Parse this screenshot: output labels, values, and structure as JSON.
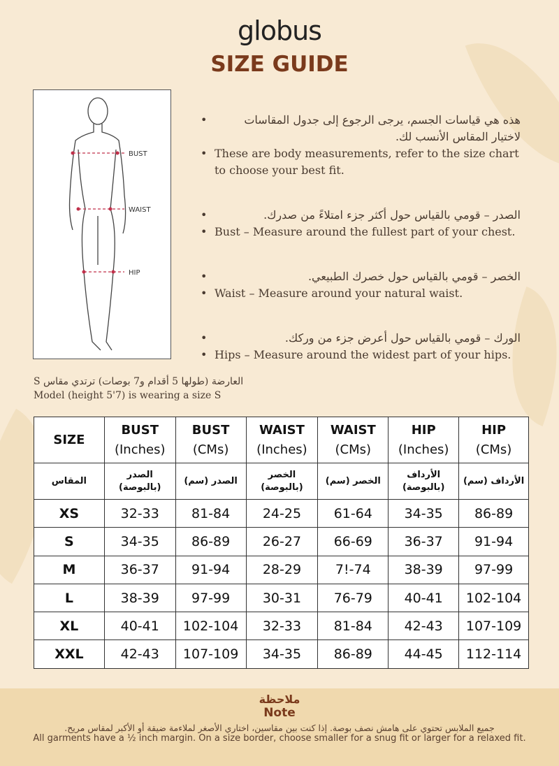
{
  "brand": "globus",
  "title": "SIZE GUIDE",
  "figure": {
    "labels": [
      "BUST",
      "WAIST",
      "HIP"
    ]
  },
  "bullets": [
    {
      "ar": "هذه هي قياسات الجسم، يرجى الرجوع إلى جدول المقاسات لاختيار المقاس الأنسب لك.",
      "en": "These are body measurements, refer to the size chart to choose your best fit."
    },
    {
      "ar": "الصدر – قومي بالقياس حول أكثر جزء امتلاءً من صدرك.",
      "en": "Bust – Measure around the fullest part of your chest."
    },
    {
      "ar": "الخصر – قومي بالقياس حول خصرك الطبيعي.",
      "en": "Waist – Measure around your natural waist."
    },
    {
      "ar": "الورك – قومي بالقياس حول أعرض جزء من وركك.",
      "en": "Hips – Measure around the widest part of your hips."
    }
  ],
  "model": {
    "ar": "العارضة (طولها 5 أقدام و7 بوصات) ترتدي مقاس S",
    "en": "Model (height 5'7) is wearing a size S"
  },
  "table": {
    "headers": [
      [
        "SIZE",
        ""
      ],
      [
        "BUST",
        "(Inches)"
      ],
      [
        "BUST",
        "(CMs)"
      ],
      [
        "WAIST",
        "(Inches)"
      ],
      [
        "WAIST",
        "(CMs)"
      ],
      [
        "HIP",
        "(Inches)"
      ],
      [
        "HIP",
        "(CMs)"
      ]
    ],
    "headers_ar": [
      "المقاس",
      "الصدر (بالبوصة)",
      "الصدر (سم)",
      "الخصر (بالبوصة)",
      "الخصر (سم)",
      "الأرداف (بالبوصة)",
      "الأرداف (سم)"
    ],
    "rows": [
      [
        "XS",
        "32-33",
        "81-84",
        "24-25",
        "61-64",
        "34-35",
        "86-89"
      ],
      [
        "S",
        "34-35",
        "86-89",
        "26-27",
        "66-69",
        "36-37",
        "91-94"
      ],
      [
        "M",
        "36-37",
        "91-94",
        "28-29",
        "7!-74",
        "38-39",
        "97-99"
      ],
      [
        "L",
        "38-39",
        "97-99",
        "30-31",
        "76-79",
        "40-41",
        "102-104"
      ],
      [
        "XL",
        "40-41",
        "102-104",
        "32-33",
        "81-84",
        "42-43",
        "107-109"
      ],
      [
        "XXL",
        "42-43",
        "107-109",
        "34-35",
        "86-89",
        "44-45",
        "112-114"
      ]
    ]
  },
  "note": {
    "title_ar": "ملاحظة",
    "title_en": "Note",
    "text_ar": "جميع الملابس تحتوي على هامش نصف بوصة. إذا كنت بين مقاسين، اختاري الأصغر لملاءمة ضيقة أو الأكبر لمقاس مريح.",
    "text_en": "All garments have a ½ inch margin. On a size border, choose smaller for a snug fit or larger for a relaxed fit."
  }
}
